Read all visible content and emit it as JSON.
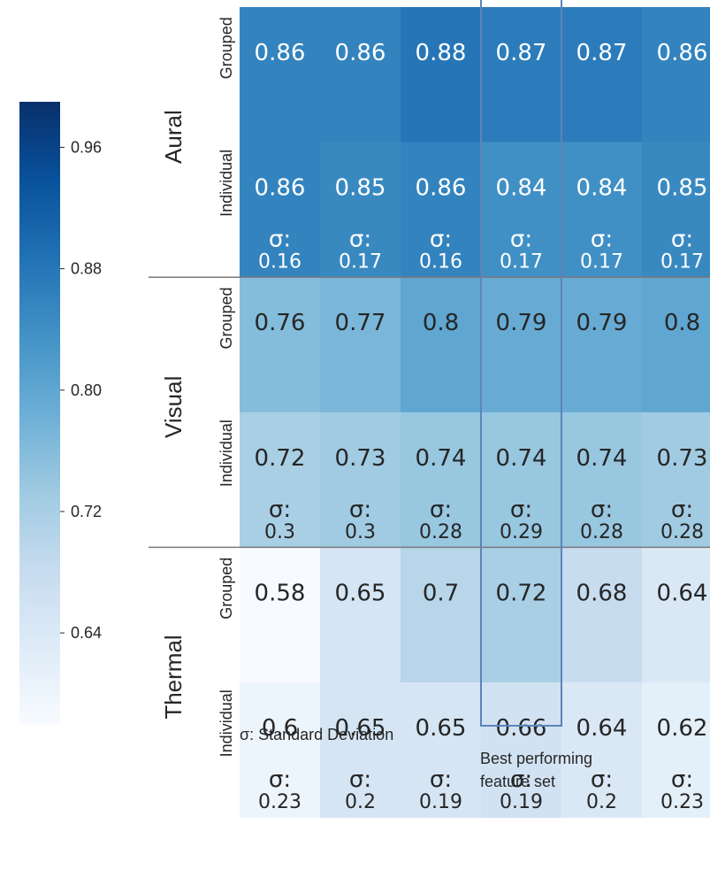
{
  "chart_data": {
    "type": "heatmap",
    "modalities": [
      "Aural",
      "Visual",
      "Thermal"
    ],
    "modes": [
      "Grouped",
      "Individual"
    ],
    "rows": [
      {
        "modality": "Aural",
        "mode": "Grouped",
        "values": [
          0.86,
          0.86,
          0.88,
          0.87,
          0.87,
          0.86
        ],
        "sigma": null
      },
      {
        "modality": "Aural",
        "mode": "Individual",
        "values": [
          0.86,
          0.85,
          0.86,
          0.84,
          0.84,
          0.85
        ],
        "sigma": [
          "0.16",
          "0.17",
          "0.16",
          "0.17",
          "0.17",
          "0.17"
        ]
      },
      {
        "modality": "Visual",
        "mode": "Grouped",
        "values": [
          0.76,
          0.77,
          0.8,
          0.79,
          0.79,
          0.8
        ],
        "sigma": null
      },
      {
        "modality": "Visual",
        "mode": "Individual",
        "values": [
          0.72,
          0.73,
          0.74,
          0.74,
          0.74,
          0.73
        ],
        "sigma": [
          "0.3",
          "0.3",
          "0.28",
          "0.29",
          "0.28",
          "0.28"
        ]
      },
      {
        "modality": "Thermal",
        "mode": "Grouped",
        "values": [
          0.58,
          0.65,
          0.7,
          0.72,
          0.68,
          0.64
        ],
        "sigma": null
      },
      {
        "modality": "Thermal",
        "mode": "Individual",
        "values": [
          0.6,
          0.65,
          0.65,
          0.66,
          0.64,
          0.62
        ],
        "sigma": [
          "0.23",
          "0.2",
          "0.19",
          "0.19",
          "0.2",
          "0.23"
        ]
      }
    ],
    "colorbar": {
      "ticks": [
        "0.96",
        "0.88",
        "0.80",
        "0.72",
        "0.64"
      ],
      "tick_values": [
        0.96,
        0.88,
        0.8,
        0.72,
        0.64
      ],
      "range": [
        0.58,
        0.99
      ],
      "colormap": "Blues"
    },
    "highlight": {
      "column_index": 3,
      "label_line1": "Best performing",
      "label_line2": "feature set",
      "color": "#5b84b8"
    },
    "sigma_prefix": "σ:",
    "footnote": "σ: Standard Deviation",
    "text_colors": {
      "light": "#ffffff",
      "dark": "#262626"
    }
  }
}
